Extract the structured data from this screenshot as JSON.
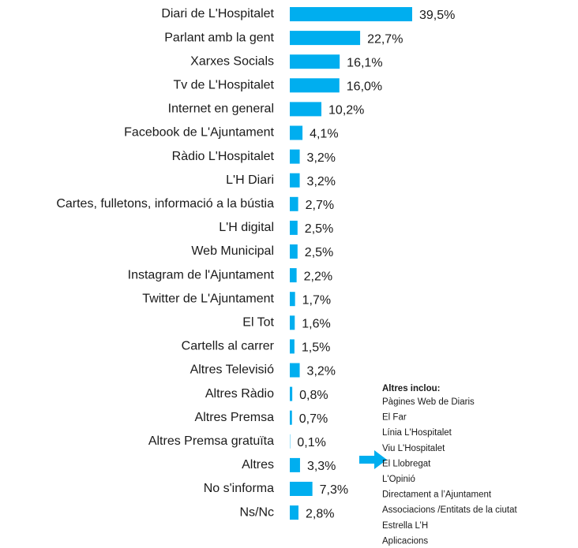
{
  "chart_data": {
    "type": "barh",
    "categories": [
      "Diari de L'Hospitalet",
      "Parlant amb la gent",
      "Xarxes Socials",
      "Tv de L'Hospitalet",
      "Internet en general",
      "Facebook de L'Ajuntament",
      "Ràdio L'Hospitalet",
      "L'H Diari",
      "Cartes, fulletons, informació a la bústia",
      "L'H digital",
      "Web Municipal",
      "Instagram de l'Ajuntament",
      "Twitter de L'Ajuntament",
      "El Tot",
      "Cartells al carrer",
      "Altres Televisió",
      "Altres Ràdio",
      "Altres Premsa",
      "Altres Premsa gratuïta",
      "Altres",
      "No s'informa",
      "Ns/Nc"
    ],
    "values": [
      39.5,
      22.7,
      16.1,
      16.0,
      10.2,
      4.1,
      3.2,
      3.2,
      2.7,
      2.5,
      2.5,
      2.2,
      1.7,
      1.6,
      1.5,
      3.2,
      0.8,
      0.7,
      0.1,
      3.3,
      7.3,
      2.8
    ],
    "value_labels": [
      "39,5%",
      "22,7%",
      "16,1%",
      "16,0%",
      "10,2%",
      "4,1%",
      "3,2%",
      "3,2%",
      "2,7%",
      "2,5%",
      "2,5%",
      "2,2%",
      "1,7%",
      "1,6%",
      "1,5%",
      "3,2%",
      "0,8%",
      "0,7%",
      "0,1%",
      "3,3%",
      "7,3%",
      "2,8%"
    ],
    "color": "#00aeef",
    "note": {
      "title": "Altres inclou:",
      "items": [
        "Pàgines Web de Diaris",
        "El Far",
        "Línia L'Hospitalet",
        "Viu L'Hospitalet",
        "El Llobregat",
        "L'Opinió",
        "Directament a l’Ajuntament",
        "Associacions /Entitats de la ciutat",
        "Estrella L’H",
        "Aplicacions"
      ]
    }
  }
}
